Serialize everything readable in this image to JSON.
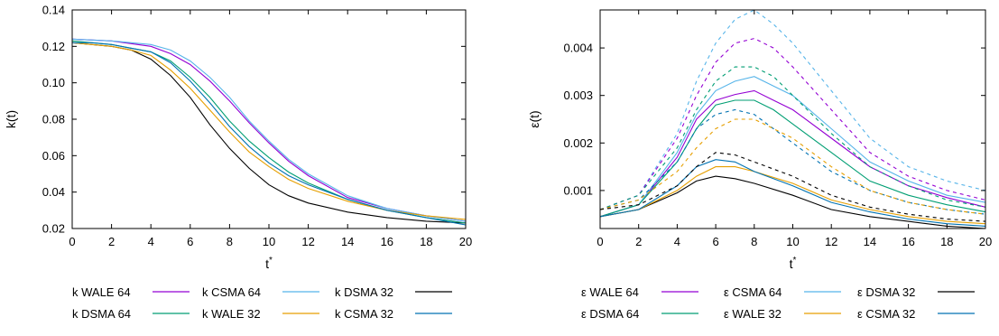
{
  "chart_data": [
    {
      "type": "line",
      "xlabel": "t",
      "xlabel_sup": "*",
      "ylabel": "k(t)",
      "xlim": [
        0,
        20
      ],
      "ylim": [
        0.02,
        0.14
      ],
      "xticks": [
        0,
        2,
        4,
        6,
        8,
        10,
        12,
        14,
        16,
        18,
        20
      ],
      "yticks": [
        "0.02",
        "0.04",
        "0.06",
        "0.08",
        "0.10",
        "0.12",
        "0.14"
      ],
      "grid": false,
      "legend_position": "bottom",
      "legend": [
        "k WALE 64",
        "k CSMA 64",
        "k DSMA 32",
        "k DSMA 64",
        "k WALE 32",
        "k CSMA 32"
      ],
      "series": [
        {
          "name": "k WALE 64",
          "color": "#9400d3",
          "style": "solid",
          "x": [
            0,
            2,
            4,
            5,
            6,
            7,
            8,
            9,
            10,
            11,
            12,
            14,
            16,
            18,
            20
          ],
          "y": [
            0.124,
            0.123,
            0.12,
            0.116,
            0.11,
            0.101,
            0.09,
            0.078,
            0.067,
            0.057,
            0.049,
            0.037,
            0.031,
            0.027,
            0.024
          ]
        },
        {
          "name": "k CSMA 64",
          "color": "#56b4e9",
          "style": "solid",
          "x": [
            0,
            2,
            4,
            5,
            6,
            7,
            8,
            9,
            10,
            11,
            12,
            14,
            16,
            18,
            20
          ],
          "y": [
            0.124,
            0.123,
            0.121,
            0.118,
            0.112,
            0.103,
            0.092,
            0.079,
            0.068,
            0.058,
            0.05,
            0.038,
            0.031,
            0.027,
            0.024
          ]
        },
        {
          "name": "k DSMA 32",
          "color": "#000000",
          "style": "solid",
          "x": [
            0,
            1,
            2,
            3,
            4,
            5,
            6,
            7,
            8,
            9,
            10,
            11,
            12,
            14,
            16,
            18,
            20
          ],
          "y": [
            0.122,
            0.121,
            0.12,
            0.118,
            0.113,
            0.104,
            0.092,
            0.077,
            0.064,
            0.053,
            0.044,
            0.038,
            0.034,
            0.029,
            0.026,
            0.024,
            0.023
          ]
        },
        {
          "name": "k DSMA 64",
          "color": "#009e73",
          "style": "solid",
          "x": [
            0,
            2,
            4,
            5,
            6,
            7,
            8,
            9,
            10,
            11,
            12,
            14,
            16,
            18,
            20
          ],
          "y": [
            0.123,
            0.121,
            0.117,
            0.112,
            0.103,
            0.092,
            0.079,
            0.068,
            0.059,
            0.051,
            0.045,
            0.036,
            0.03,
            0.026,
            0.023
          ]
        },
        {
          "name": "k WALE 32",
          "color": "#e69f00",
          "style": "solid",
          "x": [
            0,
            1,
            2,
            3,
            4,
            5,
            6,
            7,
            8,
            9,
            10,
            11,
            12,
            14,
            16,
            18,
            20
          ],
          "y": [
            0.122,
            0.121,
            0.12,
            0.118,
            0.115,
            0.107,
            0.097,
            0.085,
            0.073,
            0.062,
            0.054,
            0.047,
            0.042,
            0.035,
            0.03,
            0.027,
            0.025
          ]
        },
        {
          "name": "k CSMA 32",
          "color": "#0072b2",
          "style": "solid",
          "x": [
            0,
            1,
            2,
            3,
            4,
            5,
            6,
            7,
            8,
            9,
            10,
            11,
            12,
            14,
            16,
            18,
            20
          ],
          "y": [
            0.122,
            0.122,
            0.121,
            0.119,
            0.117,
            0.111,
            0.101,
            0.089,
            0.076,
            0.065,
            0.056,
            0.049,
            0.044,
            0.036,
            0.03,
            0.026,
            0.022
          ]
        }
      ]
    },
    {
      "type": "line",
      "xlabel": "t",
      "xlabel_sup": "*",
      "ylabel": "ε(t)",
      "xlim": [
        0,
        20
      ],
      "ylim": [
        0.0002,
        0.0048
      ],
      "xticks": [
        0,
        2,
        4,
        6,
        8,
        10,
        12,
        14,
        16,
        18,
        20
      ],
      "yticks": [
        "0.001",
        "0.002",
        "0.003",
        "0.004"
      ],
      "grid": false,
      "legend_position": "bottom",
      "legend": [
        "ε WALE 64",
        "ε CSMA 64",
        "ε DSMA 32",
        "ε DSMA 64",
        "ε WALE 32",
        "ε CSMA 32"
      ],
      "series": [
        {
          "name": "ε WALE 64",
          "color": "#9400d3",
          "style": "solid",
          "x": [
            0,
            2,
            4,
            5,
            6,
            7,
            8,
            9,
            10,
            12,
            14,
            16,
            18,
            20
          ],
          "y": [
            0.00045,
            0.0007,
            0.0017,
            0.0025,
            0.0029,
            0.00302,
            0.0031,
            0.0029,
            0.0027,
            0.0021,
            0.0015,
            0.0011,
            0.00085,
            0.00065
          ]
        },
        {
          "name": "ε CSMA 64",
          "color": "#56b4e9",
          "style": "solid",
          "x": [
            0,
            2,
            4,
            5,
            6,
            7,
            8,
            9,
            10,
            12,
            14,
            16,
            18,
            20
          ],
          "y": [
            0.00045,
            0.0007,
            0.0018,
            0.0026,
            0.0031,
            0.0033,
            0.0034,
            0.0032,
            0.003,
            0.0023,
            0.0016,
            0.0012,
            0.0009,
            0.00075
          ]
        },
        {
          "name": "ε DSMA 32",
          "color": "#000000",
          "style": "solid",
          "x": [
            0,
            2,
            4,
            5,
            6,
            7,
            8,
            10,
            12,
            14,
            16,
            18,
            20
          ],
          "y": [
            0.00045,
            0.0006,
            0.00095,
            0.0012,
            0.0013,
            0.00125,
            0.00115,
            0.0009,
            0.0006,
            0.00045,
            0.00035,
            0.00025,
            0.0002
          ]
        },
        {
          "name": "ε DSMA 64",
          "color": "#009e73",
          "style": "solid",
          "x": [
            0,
            2,
            4,
            5,
            6,
            7,
            8,
            9,
            10,
            12,
            14,
            16,
            18,
            20
          ],
          "y": [
            0.00045,
            0.0007,
            0.0016,
            0.0023,
            0.0028,
            0.0029,
            0.0029,
            0.0027,
            0.0024,
            0.0018,
            0.0012,
            0.0009,
            0.0007,
            0.00055
          ]
        },
        {
          "name": "ε WALE 32",
          "color": "#e69f00",
          "style": "solid",
          "x": [
            0,
            2,
            4,
            5,
            6,
            7,
            8,
            10,
            12,
            14,
            16,
            18,
            20
          ],
          "y": [
            0.00045,
            0.0006,
            0.001,
            0.0013,
            0.0015,
            0.0015,
            0.0014,
            0.00115,
            0.0008,
            0.0006,
            0.00045,
            0.00035,
            0.0003
          ]
        },
        {
          "name": "ε CSMA 32",
          "color": "#0072b2",
          "style": "solid",
          "x": [
            0,
            2,
            4,
            5,
            6,
            7,
            8,
            10,
            12,
            14,
            16,
            18,
            20
          ],
          "y": [
            0.00045,
            0.0006,
            0.0011,
            0.0015,
            0.00165,
            0.0016,
            0.0014,
            0.0011,
            0.00075,
            0.00055,
            0.0004,
            0.0003,
            0.00025
          ]
        },
        {
          "name": "",
          "color": "#56b4e9",
          "style": "dashed",
          "x": [
            0,
            2,
            4,
            5,
            6,
            7,
            8,
            9,
            10,
            12,
            14,
            16,
            18,
            20
          ],
          "y": [
            0.0006,
            0.0009,
            0.0022,
            0.0033,
            0.0041,
            0.0046,
            0.0048,
            0.0045,
            0.0041,
            0.0031,
            0.0021,
            0.0015,
            0.0012,
            0.001
          ]
        },
        {
          "name": "",
          "color": "#9400d3",
          "style": "dashed",
          "x": [
            0,
            2,
            4,
            5,
            6,
            7,
            8,
            9,
            10,
            12,
            14,
            16,
            18,
            20
          ],
          "y": [
            0.0006,
            0.0009,
            0.0021,
            0.003,
            0.0037,
            0.0041,
            0.0042,
            0.004,
            0.0036,
            0.0027,
            0.0018,
            0.0013,
            0.001,
            0.0008
          ]
        },
        {
          "name": "",
          "color": "#009e73",
          "style": "dashed",
          "x": [
            0,
            2,
            4,
            5,
            6,
            7,
            8,
            9,
            10,
            12,
            14,
            16,
            18,
            20
          ],
          "y": [
            0.0006,
            0.0009,
            0.0019,
            0.0027,
            0.0033,
            0.0036,
            0.0036,
            0.0034,
            0.003,
            0.0022,
            0.0015,
            0.0011,
            0.0008,
            0.00065
          ]
        },
        {
          "name": "",
          "color": "#0072b2",
          "style": "dashed",
          "x": [
            0,
            2,
            4,
            5,
            6,
            7,
            8,
            9,
            10,
            12,
            14,
            16,
            18,
            20
          ],
          "y": [
            0.0006,
            0.0008,
            0.0016,
            0.0023,
            0.0026,
            0.0027,
            0.0026,
            0.0023,
            0.002,
            0.0014,
            0.001,
            0.00075,
            0.0006,
            0.0005
          ]
        },
        {
          "name": "",
          "color": "#e69f00",
          "style": "dashed",
          "x": [
            0,
            2,
            4,
            5,
            6,
            7,
            8,
            9,
            10,
            12,
            14,
            16,
            18,
            20
          ],
          "y": [
            0.0006,
            0.0008,
            0.0014,
            0.0019,
            0.0023,
            0.0025,
            0.0025,
            0.0023,
            0.0021,
            0.0015,
            0.001,
            0.00075,
            0.0006,
            0.0005
          ]
        },
        {
          "name": "",
          "color": "#000000",
          "style": "dashed",
          "x": [
            0,
            2,
            4,
            5,
            6,
            7,
            8,
            10,
            12,
            14,
            16,
            18,
            20
          ],
          "y": [
            0.0006,
            0.0007,
            0.0011,
            0.0015,
            0.0018,
            0.00175,
            0.0016,
            0.0013,
            0.0009,
            0.00065,
            0.0005,
            0.0004,
            0.00035
          ]
        }
      ]
    }
  ]
}
